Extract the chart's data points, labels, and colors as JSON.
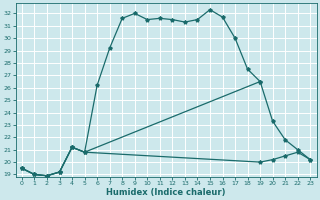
{
  "xlabel": "Humidex (Indice chaleur)",
  "background_color": "#cde8ec",
  "grid_color": "#ffffff",
  "line_color": "#1a6b6b",
  "xlim": [
    -0.5,
    23.5
  ],
  "ylim": [
    18.8,
    32.8
  ],
  "xticks": [
    0,
    1,
    2,
    3,
    4,
    5,
    6,
    7,
    8,
    9,
    10,
    11,
    12,
    13,
    14,
    15,
    16,
    17,
    18,
    19,
    20,
    21,
    22,
    23
  ],
  "yticks": [
    19,
    20,
    21,
    22,
    23,
    24,
    25,
    26,
    27,
    28,
    29,
    30,
    31,
    32
  ],
  "curve1_x": [
    0,
    1,
    2,
    3,
    4,
    5,
    6,
    7,
    8,
    9,
    10,
    11,
    12,
    13,
    14,
    15,
    16,
    17,
    18,
    19,
    20,
    21,
    22,
    23
  ],
  "curve1_y": [
    19.5,
    19.0,
    18.9,
    19.2,
    21.2,
    20.8,
    26.2,
    29.2,
    31.6,
    32.0,
    31.5,
    31.6,
    31.5,
    31.3,
    31.5,
    32.3,
    31.7,
    30.0,
    27.5,
    26.5,
    null,
    null,
    null,
    null
  ],
  "curve2_x": [
    0,
    1,
    2,
    3,
    4,
    5,
    19,
    20,
    21,
    22,
    23
  ],
  "curve2_y": [
    19.5,
    19.0,
    18.9,
    19.2,
    21.2,
    20.8,
    26.5,
    23.3,
    21.8,
    21.0,
    20.2
  ],
  "curve3_x": [
    0,
    1,
    2,
    3,
    4,
    5,
    19,
    20,
    21,
    22,
    23
  ],
  "curve3_y": [
    19.5,
    19.0,
    18.9,
    19.2,
    21.2,
    20.8,
    20.0,
    20.2,
    20.5,
    20.8,
    20.2
  ]
}
